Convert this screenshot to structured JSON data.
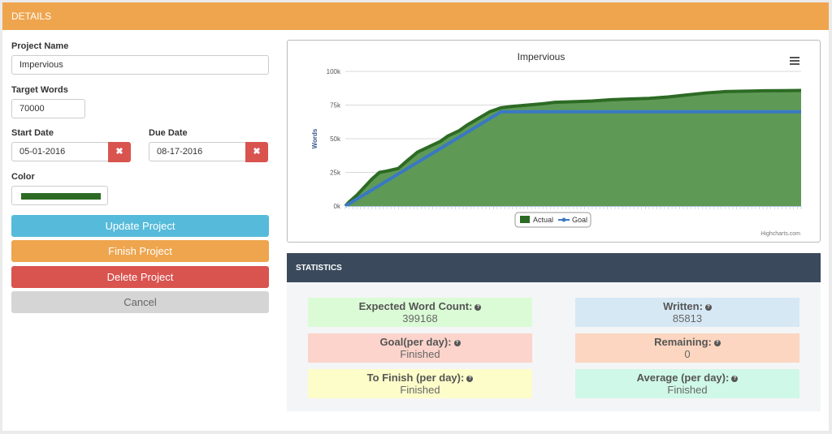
{
  "header": {
    "title": "DETAILS"
  },
  "form": {
    "project_name_label": "Project Name",
    "project_name": "Impervious",
    "target_words_label": "Target Words",
    "target_words": "70000",
    "start_date_label": "Start Date",
    "start_date": "05-01-2016",
    "due_date_label": "Due Date",
    "due_date": "08-17-2016",
    "color_label": "Color",
    "color_value": "#2d6b25",
    "clear_glyph": "✖"
  },
  "buttons": {
    "update": "Update Project",
    "finish": "Finish Project",
    "delete": "Delete Project",
    "cancel": "Cancel"
  },
  "colors": {
    "header": "#eea54e",
    "update": "#56bbda",
    "finish": "#eea54e",
    "delete": "#d9534f",
    "cancel": "#d5d5d5",
    "actual_fill": "#5e9a56",
    "actual_line": "#2d6b25",
    "goal_line": "#3a78c4"
  },
  "chart_menu_icon": "hamburger-menu-icon",
  "chart_data": {
    "type": "area",
    "title": "Impervious",
    "ylabel": "Words",
    "ylim": [
      0,
      100000
    ],
    "yticks": [
      "0k",
      "25k",
      "50k",
      "75k",
      "100k"
    ],
    "ytick_values": [
      0,
      25000,
      50000,
      75000,
      100000
    ],
    "legend_position": "bottom-center",
    "credit": "Highcharts.com",
    "series": [
      {
        "name": "Actual",
        "type": "area",
        "x": [
          0,
          1,
          3,
          5,
          7,
          9,
          11,
          14,
          16,
          19,
          22,
          25,
          27,
          30,
          32,
          35,
          38,
          40,
          41,
          44,
          48,
          52,
          55,
          60,
          65,
          70,
          75,
          80,
          85,
          90,
          95,
          100,
          105,
          108,
          110,
          115,
          120
        ],
        "values": [
          0,
          3000,
          8000,
          14000,
          20000,
          25000,
          26000,
          28000,
          33000,
          40000,
          44000,
          48000,
          52000,
          56000,
          60000,
          65000,
          70000,
          72000,
          73000,
          74000,
          75000,
          76000,
          77000,
          77500,
          78000,
          79000,
          79500,
          80000,
          81000,
          82500,
          84000,
          85000,
          85300,
          85500,
          85600,
          85700,
          85813
        ]
      },
      {
        "name": "Goal",
        "type": "line",
        "x": [
          0,
          41,
          120
        ],
        "values": [
          0,
          70000,
          70000
        ]
      }
    ]
  },
  "stats": {
    "title": "STATISTICS",
    "help_glyph": "?",
    "expected_label": "Expected Word Count:",
    "expected_value": "399168",
    "written_label": "Written:",
    "written_value": "85813",
    "goal_label": "Goal(per day):",
    "goal_value": "Finished",
    "remaining_label": "Remaining:",
    "remaining_value": "0",
    "tofinish_label": "To Finish (per day):",
    "tofinish_value": "Finished",
    "average_label": "Average (per day):",
    "average_value": "Finished"
  }
}
